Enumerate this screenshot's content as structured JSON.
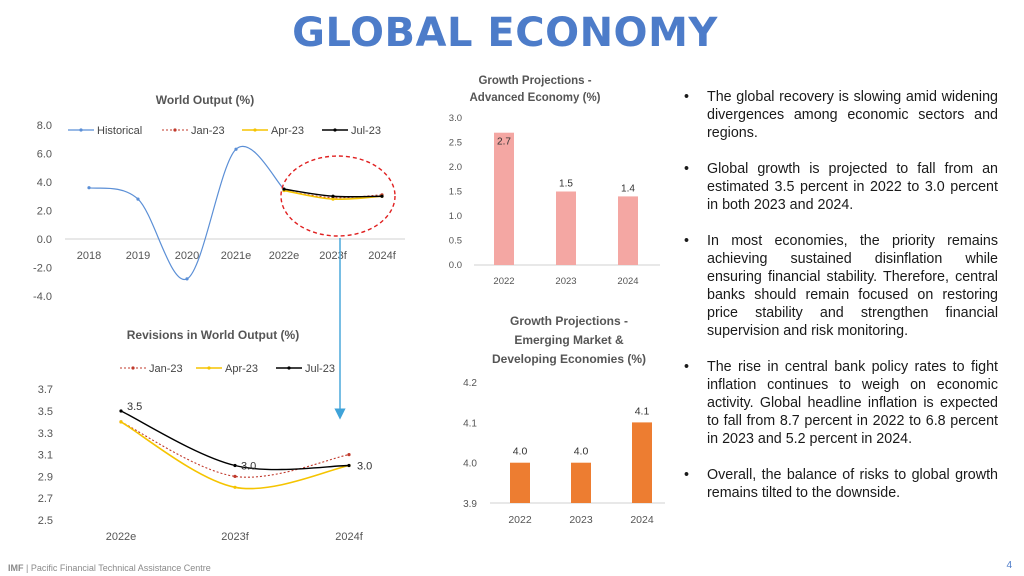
{
  "title": "GLOBAL ECONOMY",
  "colors": {
    "title": "#4d7cc9",
    "historical": "#5b8fd6",
    "jan": "#c0392b",
    "apr": "#f5c400",
    "jul": "#000000",
    "advanced_bar": "#f4a7a3",
    "emerging_bar": "#ed7d31",
    "highlight": "#e02020",
    "arrow": "#3fa3d9"
  },
  "chart_data": [
    {
      "type": "line",
      "title": "World Output (%)",
      "categories": [
        "2018",
        "2019",
        "2020",
        "2021e",
        "2022e",
        "2023f",
        "2024f"
      ],
      "series": [
        {
          "name": "Historical",
          "values": [
            3.6,
            2.8,
            -2.8,
            6.3,
            3.5,
            null,
            null
          ]
        },
        {
          "name": "Jan-23",
          "values": [
            null,
            null,
            null,
            null,
            3.4,
            2.9,
            3.1
          ]
        },
        {
          "name": "Apr-23",
          "values": [
            null,
            null,
            null,
            null,
            3.4,
            2.8,
            3.0
          ]
        },
        {
          "name": "Jul-23",
          "values": [
            null,
            null,
            null,
            null,
            3.5,
            3.0,
            3.0
          ]
        }
      ],
      "yticks": [
        "8.0",
        "6.0",
        "4.0",
        "2.0",
        "0.0",
        "-2.0",
        "-4.0"
      ],
      "ylim": [
        -4,
        8
      ]
    },
    {
      "type": "bar",
      "title": "Growth Projections - Advanced Economy (%)",
      "categories": [
        "2022",
        "2023",
        "2024"
      ],
      "values": [
        2.7,
        1.5,
        1.4
      ],
      "labels": [
        "2.7",
        "1.5",
        "1.4"
      ],
      "yticks": [
        "3.0",
        "2.5",
        "2.0",
        "1.5",
        "1.0",
        "0.5",
        "0.0"
      ],
      "ylim": [
        0,
        3
      ]
    },
    {
      "type": "line",
      "title": "Revisions in World Output (%)",
      "categories": [
        "2022e",
        "2023f",
        "2024f"
      ],
      "series": [
        {
          "name": "Jan-23",
          "values": [
            3.4,
            2.9,
            3.1
          ]
        },
        {
          "name": "Apr-23",
          "values": [
            3.4,
            2.8,
            3.0
          ]
        },
        {
          "name": "Jul-23",
          "values": [
            3.5,
            3.0,
            3.0
          ]
        }
      ],
      "point_labels": [
        "3.5",
        "3.0",
        "3.0"
      ],
      "yticks": [
        "3.7",
        "3.5",
        "3.3",
        "3.1",
        "2.9",
        "2.7",
        "2.5"
      ],
      "ylim": [
        2.5,
        3.7
      ]
    },
    {
      "type": "bar",
      "title": "Growth Projections - Emerging Market & Developing Economies (%)",
      "categories": [
        "2022",
        "2023",
        "2024"
      ],
      "values": [
        4.0,
        4.0,
        4.1
      ],
      "labels": [
        "4.0",
        "4.0",
        "4.1"
      ],
      "yticks": [
        "4.2",
        "4.1",
        "4.0",
        "3.9"
      ],
      "ylim": [
        3.9,
        4.2
      ]
    }
  ],
  "bullets": [
    "The global recovery is slowing amid widening divergences among economic sectors and regions.",
    "Global growth is projected to fall from an estimated 3.5 percent in 2022 to 3.0 percent in both 2023 and 2024.",
    "In most economies, the priority remains achieving sustained disinflation while ensuring financial stability. Therefore, central banks should remain focused on restoring price stability and strengthen financial supervision and risk monitoring.",
    "The rise in central bank policy rates to fight inflation continues to weigh on economic activity. Global headline inflation is expected to fall from 8.7 percent in 2022 to 6.8 percent in 2023 and 5.2 percent in 2024.",
    "Overall, the balance of risks to global growth remains tilted to the downside."
  ],
  "footer": {
    "brand": "IMF",
    "text": " | Pacific Financial Technical Assistance Centre"
  },
  "page_number": "4"
}
